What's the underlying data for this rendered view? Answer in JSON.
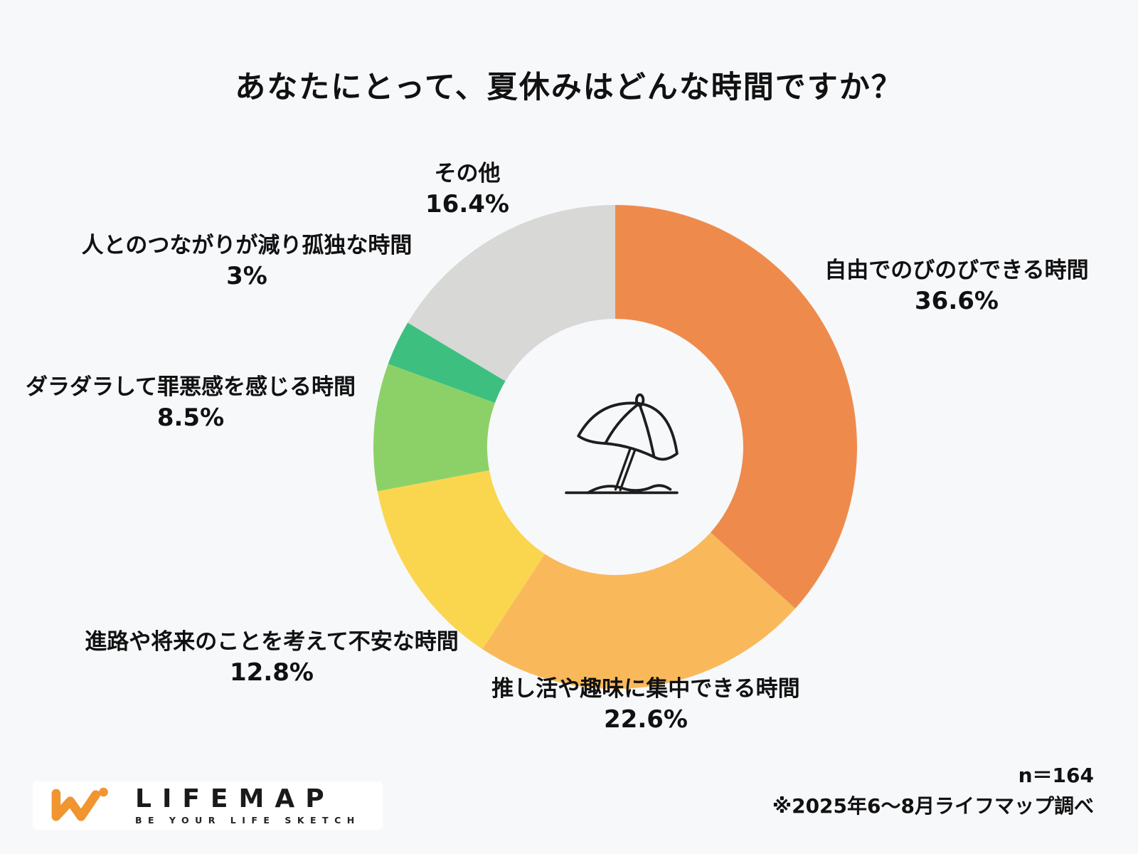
{
  "page": {
    "background": "#F7F8FA",
    "text_color": "#111111"
  },
  "title": "あなたにとって、夏休みはどんな時間ですか？",
  "chart_data": {
    "type": "pie",
    "subtype": "donut",
    "title": "あなたにとって、夏休みはどんな時間ですか？",
    "start_angle_deg": 0,
    "direction": "clockwise",
    "categories": [
      "自由でのびのびできる時間",
      "推し活や趣味に集中できる時間",
      "進路や将来のことを考えて不安な時間",
      "ダラダラして罪悪感を感じる時間",
      "人とのつながりが減り孤独な時間",
      "その他"
    ],
    "values": [
      36.6,
      22.6,
      12.8,
      8.5,
      3,
      16.4
    ],
    "unit": "%",
    "colors": [
      "#EE8B4C",
      "#F9B95B",
      "#FAD64F",
      "#8CD167",
      "#3DBF80",
      "#D8D8D6"
    ],
    "ids": [
      "free-time",
      "hobby-time",
      "anxious-time",
      "guilty-time",
      "lonely-time",
      "other"
    ],
    "labels": [
      {
        "name": "自由でのびのびできる時間",
        "pct": "36.6%"
      },
      {
        "name": "推し活や趣味に集中できる時間",
        "pct": "22.6%"
      },
      {
        "name": "進路や将来のことを考えて不安な時間",
        "pct": "12.8%"
      },
      {
        "name": "ダラダラして罪悪感を感じる時間",
        "pct": "8.5%"
      },
      {
        "name": "人とのつながりが減り孤独な時間",
        "pct": "3%"
      },
      {
        "name": "その他",
        "pct": "16.4%"
      }
    ],
    "center_icon": "beach-umbrella",
    "legend": "none",
    "sample_size": "n＝164"
  },
  "footer": {
    "sample_size": "n＝164",
    "note": "※2025年6～8月ライフマップ調べ"
  },
  "logo": {
    "name": "LIFEMAP",
    "tagline": "BE YOUR LIFE SKETCH",
    "mark": "LM-zigzag",
    "mark_color": "#F0952F",
    "text_color": "#1A1A1A"
  }
}
